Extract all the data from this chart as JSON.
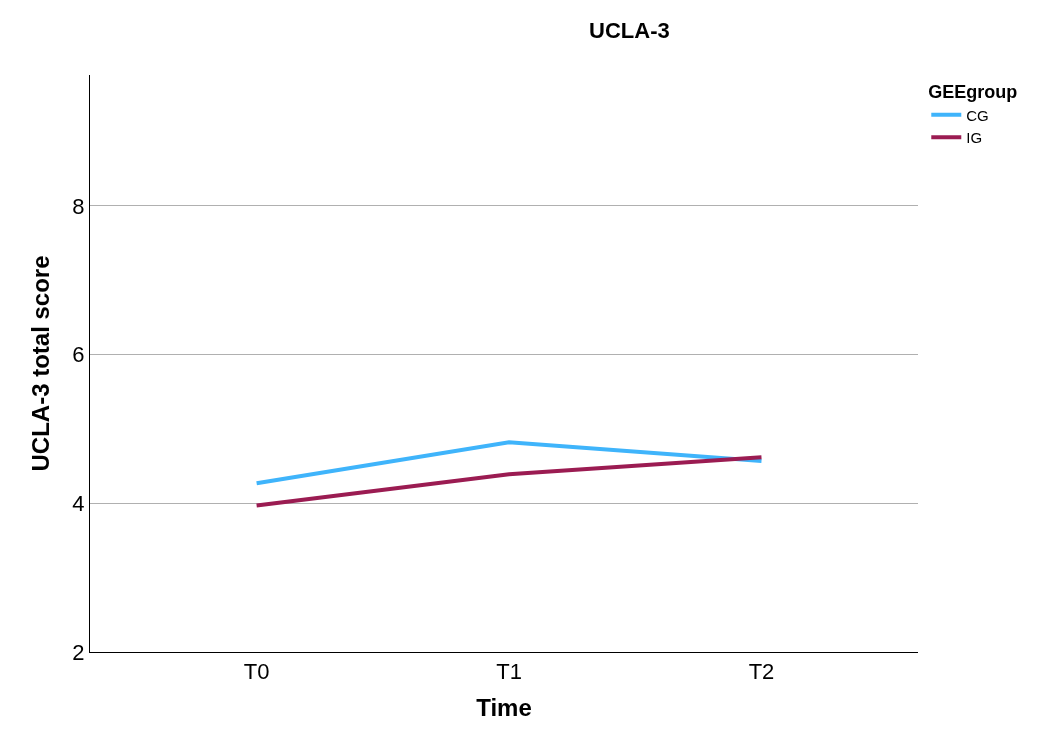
{
  "chart_data": {
    "type": "line",
    "title": "UCLA-3",
    "xlabel": "Time",
    "ylabel": "UCLA-3 total score",
    "legend_title": "GEEgroup",
    "categories": [
      "T0",
      "T1",
      "T2"
    ],
    "series": [
      {
        "name": "CG",
        "color": "#3fb4fb",
        "values": [
          4.27,
          4.82,
          4.57
        ]
      },
      {
        "name": "IG",
        "color": "#9b1c52",
        "values": [
          3.97,
          4.39,
          4.62
        ]
      }
    ],
    "ylim": [
      2,
      9.76
    ],
    "yticks": [
      2,
      4,
      6,
      8
    ],
    "grid": "y",
    "legend": "top right",
    "marker": "none",
    "line_style": "solid"
  }
}
